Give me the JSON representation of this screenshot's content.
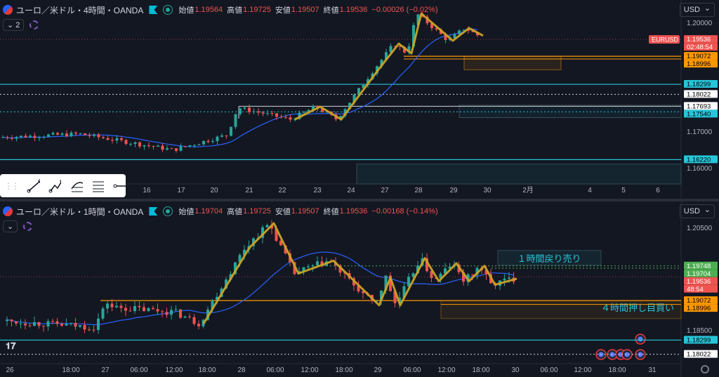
{
  "top_panel": {
    "symbol": "ユーロ／米ドル・4時間・OANDA",
    "ohlc": [
      {
        "label": "始値",
        "value": "1.19564"
      },
      {
        "label": "高値",
        "value": "1.19725"
      },
      {
        "label": "安値",
        "value": "1.19507"
      },
      {
        "label": "終値",
        "value": "1.19536"
      }
    ],
    "change": "−0.00026 (−0.02%)",
    "layer_count": "2",
    "currency_label": "USD",
    "price_ticks": [
      {
        "label": "1.20000",
        "price": 1.2
      },
      {
        "label": "1.17000",
        "price": 1.17
      },
      {
        "label": "1.16000",
        "price": 1.16
      }
    ],
    "price_tags": [
      {
        "label": "EURUSD",
        "price": 1.19536,
        "color": "#ef5350",
        "text_color": "#ffffff",
        "named": true
      },
      {
        "label": "1.19536",
        "price": 1.19536,
        "color": "#ef5350",
        "text_color": "#ffffff"
      },
      {
        "label": "02:48:54",
        "price": 1.19536,
        "color": "#ef5350",
        "text_color": "#ffffff",
        "sub": true
      },
      {
        "label": "1.19072",
        "price": 1.19072,
        "color": "#ff9800",
        "text_color": "#000000"
      },
      {
        "label": "1.18996",
        "price": 1.18996,
        "color": "#ff9800",
        "text_color": "#000000"
      },
      {
        "label": "1.18299",
        "price": 1.18299,
        "color": "#26c6da",
        "text_color": "#000000"
      },
      {
        "label": "1.18022",
        "price": 1.18022,
        "color": "#ffffff",
        "text_color": "#000000"
      },
      {
        "label": "1.17693",
        "price": 1.17693,
        "color": "#ffffff",
        "text_color": "#000000"
      },
      {
        "label": "1.17540",
        "price": 1.1754,
        "color": "#26c6da",
        "text_color": "#000000"
      },
      {
        "label": "1.16220",
        "price": 1.1622,
        "color": "#26c6da",
        "text_color": "#000000"
      }
    ],
    "time_labels": [
      "16",
      "17",
      "20",
      "21",
      "22",
      "23",
      "24",
      "27",
      "28",
      "29",
      "30",
      "2月",
      "4",
      "5",
      "6"
    ],
    "toolbar_tools": [
      "trend-line-tool",
      "path-tool",
      "fib-tool",
      "channel-tool",
      "horizontal-ray-tool"
    ]
  },
  "bottom_panel": {
    "symbol": "ユーロ／米ドル・1時間・OANDA",
    "ohlc": [
      {
        "label": "始値",
        "value": "1.19704"
      },
      {
        "label": "高値",
        "value": "1.19725"
      },
      {
        "label": "安値",
        "value": "1.19507"
      },
      {
        "label": "終値",
        "value": "1.19536"
      }
    ],
    "change": "−0.00168 (−0.14%)",
    "currency_label": "USD",
    "price_ticks": [
      {
        "label": "1.20500",
        "price": 1.205
      },
      {
        "label": "1.18500",
        "price": 1.185
      }
    ],
    "price_tags": [
      {
        "label": "1.19748",
        "price": 1.19748,
        "color": "#4caf50",
        "text_color": "#ffffff"
      },
      {
        "label": "1.19704",
        "price": 1.19704,
        "color": "#4caf50",
        "text_color": "#ffffff"
      },
      {
        "label": "1.19536",
        "price": 1.19536,
        "color": "#ef5350",
        "text_color": "#ffffff"
      },
      {
        "label": "48:54",
        "price": 1.19536,
        "color": "#ef5350",
        "text_color": "#ffffff",
        "sub": true
      },
      {
        "label": "1.19072",
        "price": 1.19072,
        "color": "#ff9800",
        "text_color": "#000000"
      },
      {
        "label": "1.18996",
        "price": 1.18996,
        "color": "#ff9800",
        "text_color": "#000000"
      },
      {
        "label": "1.18299",
        "price": 1.18299,
        "color": "#26c6da",
        "text_color": "#000000"
      },
      {
        "label": "1.18022",
        "price": 1.18022,
        "color": "#ffffff",
        "text_color": "#000000"
      }
    ],
    "time_labels": [
      "26",
      "18:00",
      "27",
      "06:00",
      "12:00",
      "18:00",
      "28",
      "06:00",
      "12:00",
      "18:00",
      "29",
      "06:00",
      "12:00",
      "18:00",
      "30",
      "06:00",
      "12:00",
      "18:00",
      "31"
    ],
    "annotations": [
      "１時間戻り売り",
      "４時間押し目買い"
    ]
  },
  "colors": {
    "up": "#26a69a",
    "down": "#ef5350",
    "zigzag": "#c9a227",
    "ma": "#2962ff",
    "orange_zone": "#ff9800",
    "cyan_line": "#26c6da"
  },
  "chart_data": [
    {
      "type": "candlestick",
      "title": "ユーロ／米ドル・4時間・OANDA",
      "ylim": [
        1.1555,
        1.2043
      ],
      "x_categories": [
        "16",
        "17",
        "20",
        "21",
        "22",
        "23",
        "24",
        "27",
        "28",
        "29",
        "30"
      ],
      "zigzag_prices": [
        1.1733,
        1.1768,
        1.1733,
        1.1873,
        1.1942,
        1.1915,
        1.2025,
        1.195,
        1.1985,
        1.1964
      ],
      "horizontal_levels": [
        1.19072,
        1.18996,
        1.18299,
        1.18022,
        1.17693,
        1.1754,
        1.1622
      ],
      "last_price": 1.19536
    },
    {
      "type": "candlestick",
      "title": "ユーロ／米ドル・1時間・OANDA",
      "ylim": [
        1.1788,
        1.2087
      ],
      "x_categories": [
        "26",
        "27",
        "28",
        "29",
        "30"
      ],
      "zigzag_prices": [
        1.1862,
        1.201,
        1.2058,
        1.196,
        1.1985,
        1.1898,
        1.1952,
        1.1898,
        1.199,
        1.1945,
        1.198,
        1.1945,
        1.1975,
        1.1938,
        1.195
      ],
      "horizontal_levels": [
        1.19748,
        1.19704,
        1.19072,
        1.18996,
        1.18299,
        1.18022
      ],
      "last_price": 1.19536
    }
  ]
}
